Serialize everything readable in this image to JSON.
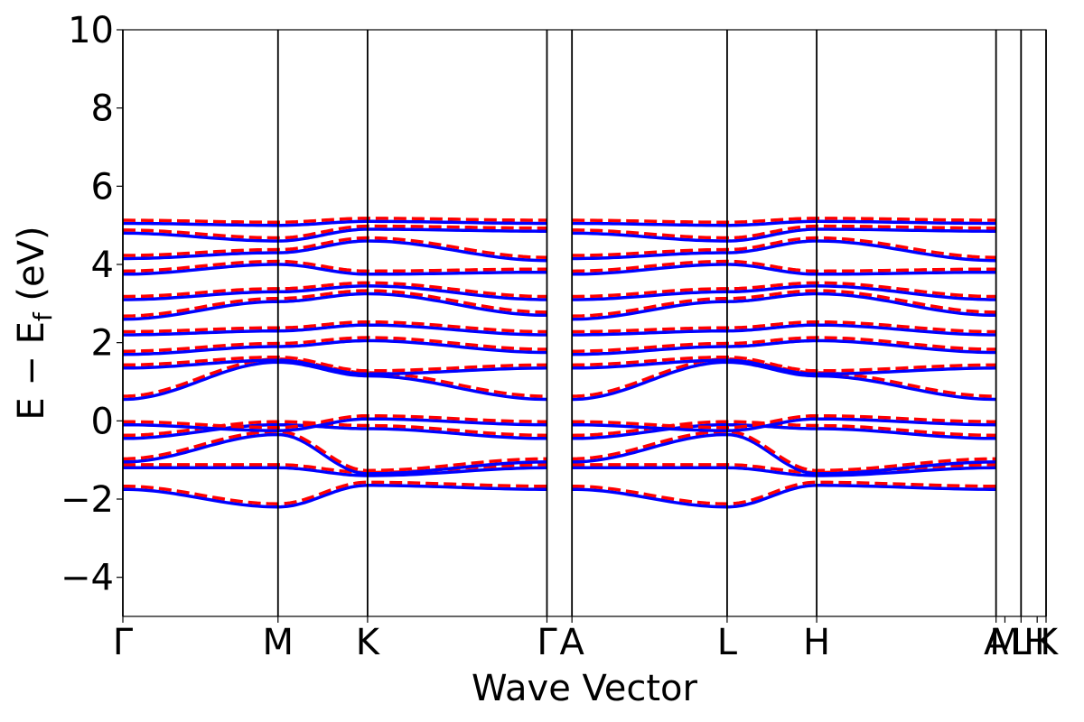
{
  "chart_data": {
    "type": "line",
    "title": "",
    "xlabel": "Wave Vector",
    "ylabel": "E − E",
    "ylabel_subscript": "f",
    "ylabel_unit": " (eV)",
    "ylim": [
      -5,
      10
    ],
    "yticks": [
      -4,
      -2,
      0,
      2,
      4,
      6,
      8,
      10
    ],
    "ytick_labels": [
      "−4",
      "−2",
      "0",
      "2",
      "4",
      "6",
      "8",
      "10"
    ],
    "kpath_positions": [
      0,
      0.577,
      0.91,
      1.577,
      1.67,
      2.247,
      2.58,
      3.247,
      3.34,
      3.433
    ],
    "xlim": [
      0,
      3.433
    ],
    "high_symmetry_labels": [
      {
        "label": "Γ",
        "x": 0
      },
      {
        "label": "M",
        "x": 0.577
      },
      {
        "label": "K",
        "x": 0.91
      },
      {
        "label": "Γ",
        "x": 1.577
      },
      {
        "label": "A",
        "x": 1.67
      },
      {
        "label": "L",
        "x": 2.247
      },
      {
        "label": "H",
        "x": 2.58
      },
      {
        "label": "A",
        "x": 3.247
      },
      {
        "label": "M",
        "x": 3.28
      },
      {
        "label": "L",
        "x": 3.34
      },
      {
        "label": "H",
        "x": 3.4
      },
      {
        "label": "K",
        "x": 3.433
      }
    ],
    "grid": false,
    "legend": "none",
    "series": [
      {
        "style": "solid",
        "color": "#0000ff"
      },
      {
        "style": "dashed",
        "color": "#ff0000"
      }
    ],
    "bands": [
      {
        "k": [
          0,
          0.577,
          0.91,
          1.577
        ],
        "E": [
          -1.75,
          -2.2,
          -1.65,
          -1.75
        ]
      },
      {
        "k": [
          0,
          0.577,
          0.91,
          1.577
        ],
        "E": [
          -1.2,
          -1.2,
          -1.4,
          -1.2
        ]
      },
      {
        "k": [
          0,
          0.577,
          0.91,
          1.577
        ],
        "E": [
          -1.05,
          -0.35,
          -1.35,
          -1.05
        ]
      },
      {
        "k": [
          0,
          0.577,
          0.91,
          1.577
        ],
        "E": [
          -0.45,
          -0.1,
          -0.2,
          -0.45
        ]
      },
      {
        "k": [
          0,
          0.577,
          0.91,
          1.577
        ],
        "E": [
          -0.1,
          -0.25,
          0.05,
          -0.1
        ]
      },
      {
        "k": [
          0,
          0.577,
          0.91,
          1.577
        ],
        "E": [
          0.55,
          1.5,
          1.15,
          0.55
        ]
      },
      {
        "k": [
          0,
          0.577,
          0.91,
          1.577
        ],
        "E": [
          1.35,
          1.55,
          1.2,
          1.35
        ]
      },
      {
        "k": [
          0,
          0.577,
          0.91,
          1.577
        ],
        "E": [
          1.7,
          1.9,
          2.05,
          1.75
        ]
      },
      {
        "k": [
          0,
          0.577,
          0.91,
          1.577
        ],
        "E": [
          2.2,
          2.3,
          2.45,
          2.2
        ]
      },
      {
        "k": [
          0,
          0.577,
          0.91,
          1.577
        ],
        "E": [
          2.6,
          3.05,
          3.25,
          2.7
        ]
      },
      {
        "k": [
          0,
          0.577,
          0.91,
          1.577
        ],
        "E": [
          3.1,
          3.3,
          3.45,
          3.1
        ]
      },
      {
        "k": [
          0,
          0.577,
          0.91,
          1.577
        ],
        "E": [
          3.75,
          4.0,
          3.75,
          3.8
        ]
      },
      {
        "k": [
          0,
          0.577,
          0.91,
          1.577
        ],
        "E": [
          4.15,
          4.3,
          4.6,
          4.1
        ]
      },
      {
        "k": [
          0,
          0.577,
          0.91,
          1.577
        ],
        "E": [
          4.8,
          4.6,
          4.9,
          4.85
        ]
      },
      {
        "k": [
          0,
          0.577,
          0.91,
          1.577
        ],
        "E": [
          5.05,
          5.0,
          5.1,
          5.05
        ]
      },
      {
        "k": [
          1.67,
          2.247,
          2.58,
          3.247
        ],
        "E": [
          -1.75,
          -2.2,
          -1.65,
          -1.75
        ]
      },
      {
        "k": [
          1.67,
          2.247,
          2.58,
          3.247
        ],
        "E": [
          -1.2,
          -1.2,
          -1.4,
          -1.2
        ]
      },
      {
        "k": [
          1.67,
          2.247,
          2.58,
          3.247
        ],
        "E": [
          -1.05,
          -0.35,
          -1.35,
          -1.05
        ]
      },
      {
        "k": [
          1.67,
          2.247,
          2.58,
          3.247
        ],
        "E": [
          -0.45,
          -0.1,
          -0.2,
          -0.45
        ]
      },
      {
        "k": [
          1.67,
          2.247,
          2.58,
          3.247
        ],
        "E": [
          -0.1,
          -0.25,
          0.05,
          -0.1
        ]
      },
      {
        "k": [
          1.67,
          2.247,
          2.58,
          3.247
        ],
        "E": [
          0.55,
          1.5,
          1.15,
          0.55
        ]
      },
      {
        "k": [
          1.67,
          2.247,
          2.58,
          3.247
        ],
        "E": [
          1.35,
          1.55,
          1.2,
          1.35
        ]
      },
      {
        "k": [
          1.67,
          2.247,
          2.58,
          3.247
        ],
        "E": [
          1.7,
          1.9,
          2.05,
          1.75
        ]
      },
      {
        "k": [
          1.67,
          2.247,
          2.58,
          3.247
        ],
        "E": [
          2.2,
          2.3,
          2.45,
          2.2
        ]
      },
      {
        "k": [
          1.67,
          2.247,
          2.58,
          3.247
        ],
        "E": [
          2.6,
          3.05,
          3.25,
          2.7
        ]
      },
      {
        "k": [
          1.67,
          2.247,
          2.58,
          3.247
        ],
        "E": [
          3.1,
          3.3,
          3.45,
          3.1
        ]
      },
      {
        "k": [
          1.67,
          2.247,
          2.58,
          3.247
        ],
        "E": [
          3.75,
          4.0,
          3.75,
          3.8
        ]
      },
      {
        "k": [
          1.67,
          2.247,
          2.58,
          3.247
        ],
        "E": [
          4.15,
          4.3,
          4.6,
          4.1
        ]
      },
      {
        "k": [
          1.67,
          2.247,
          2.58,
          3.247
        ],
        "E": [
          4.8,
          4.6,
          4.9,
          4.85
        ]
      },
      {
        "k": [
          1.67,
          2.247,
          2.58,
          3.247
        ],
        "E": [
          5.05,
          5.0,
          5.1,
          5.05
        ]
      }
    ]
  }
}
